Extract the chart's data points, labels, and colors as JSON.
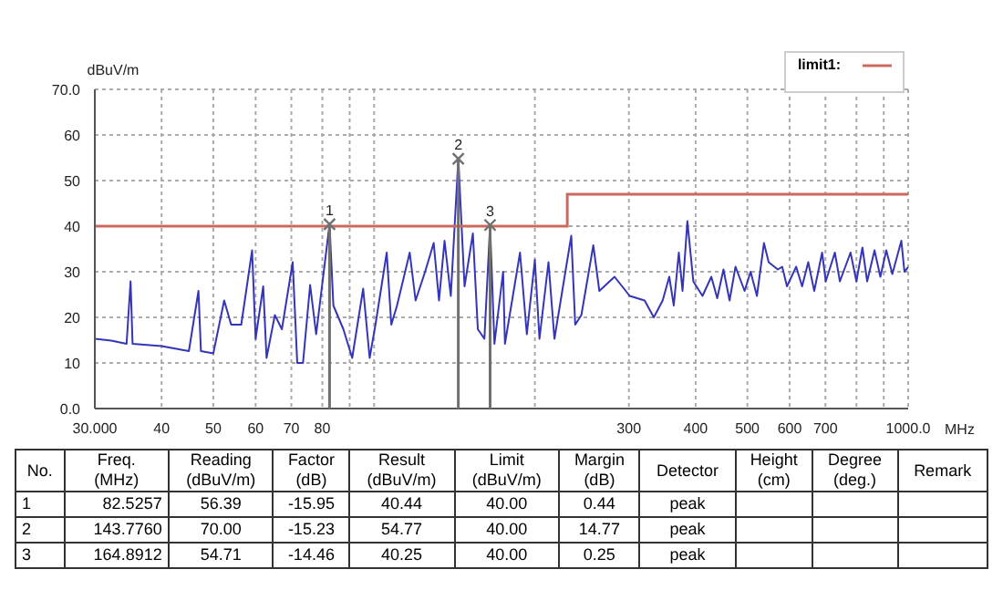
{
  "chart_data": [
    {
      "type": "line",
      "xlabel": "MHz",
      "ylabel": "dBuV/m",
      "log": "x",
      "grid": true,
      "legend": "top right",
      "xlim": [
        30,
        1000
      ],
      "xticks": [
        {
          "value": 30,
          "label": "30.000"
        },
        40,
        50,
        60,
        70,
        80,
        {
          "value": 90,
          "label": null
        },
        {
          "value": 100,
          "label": null
        },
        {
          "value": 200,
          "label": null
        },
        300,
        400,
        500,
        600,
        700,
        {
          "value": 800,
          "label": null
        },
        {
          "value": 900,
          "label": null
        },
        {
          "value": 1000,
          "label": "1000.0"
        }
      ],
      "ylim": [
        0,
        70
      ],
      "yticks": [
        {
          "value": 0,
          "label": "0.0"
        },
        10,
        20,
        30,
        40,
        50,
        60,
        {
          "value": 70,
          "label": "70.0"
        }
      ],
      "series": [
        {
          "color": "#3535b8",
          "x": [
            30,
            32.2,
            34.4,
            35,
            35.3,
            40,
            45,
            46.9,
            47.4,
            50,
            52.4,
            54,
            56.4,
            59.1,
            60,
            62,
            62.9,
            65.2,
            67.2,
            70.4,
            71.8,
            73.6,
            75.9,
            77.9,
            82.5257,
            83.9,
            87.6,
            91,
            95.4,
            98.1,
            100.6,
            105.6,
            107.7,
            110.4,
            116.6,
            119.6,
            124.6,
            129.3,
            132.3,
            135.5,
            139.2,
            143.776,
            147.7,
            153.1,
            156.4,
            160.9,
            164.8912,
            168,
            174.4,
            175.8,
            187.6,
            193.2,
            200,
            204,
            212.1,
            217.6,
            234,
            238,
            244.4,
            257.3,
            264.1,
            282,
            301,
            321,
            334,
            347,
            357,
            364,
            372,
            378,
            386,
            396,
            412,
            428,
            439,
            451,
            463,
            475,
            494,
            507,
            521,
            537,
            548,
            570,
            581,
            593,
            617,
            633,
            650,
            667,
            690,
            701,
            729,
            745,
            780,
            800,
            821,
            838,
            865,
            887,
            910,
            934,
            971,
            984,
            1000
          ],
          "values": [
            15.3,
            14.9,
            14.2,
            27.9,
            14.2,
            13.7,
            12.6,
            25.8,
            12.6,
            12.1,
            23.7,
            18.4,
            18.4,
            34.7,
            15.3,
            26.8,
            11.1,
            20.5,
            17.4,
            32.1,
            10,
            10,
            27.1,
            16.3,
            40.44,
            22.6,
            17.4,
            11.1,
            26.3,
            11.1,
            18.4,
            34.2,
            18.4,
            22.6,
            34.2,
            23.7,
            30,
            36.3,
            23.7,
            36.8,
            24.7,
            54.77,
            26.8,
            38.4,
            17.4,
            15.3,
            40.25,
            14.2,
            30,
            14.2,
            34.2,
            16.3,
            32.6,
            15.3,
            32.1,
            15.3,
            37.9,
            18.4,
            20.5,
            35.8,
            25.8,
            28.9,
            24.7,
            23.7,
            20,
            23.7,
            28.9,
            22.6,
            34.2,
            25.8,
            41.1,
            27.9,
            24.7,
            28.9,
            24.2,
            30.5,
            23.7,
            31.1,
            25.8,
            30,
            24.7,
            36.3,
            32.1,
            30.5,
            31.1,
            26.8,
            31.1,
            26.8,
            32.1,
            25.8,
            34.2,
            27.9,
            34.2,
            27.9,
            34.2,
            27.9,
            35.3,
            27.9,
            34.7,
            28.9,
            34.7,
            29.5,
            36.8,
            30,
            31
          ]
        },
        {
          "name": "limit1:",
          "type": "step",
          "color": "#cc6a5e",
          "x": [
            30,
            230,
            1000
          ],
          "values": [
            40,
            47,
            47
          ]
        },
        {
          "type": "lollipop",
          "marker": "cross",
          "color": "#707070",
          "x": [
            82.5257,
            143.776,
            164.8912
          ],
          "values": [
            40.44,
            54.77,
            40.25
          ]
        }
      ],
      "annotations": [
        {
          "text": "1",
          "x": 82.5257,
          "y": 40.44
        },
        {
          "text": "2",
          "x": 143.776,
          "y": 54.77
        },
        {
          "text": "3",
          "x": 164.8912,
          "y": 40.25
        }
      ]
    },
    {
      "type": "other",
      "categories": [
        "No.",
        "Freq.\n(MHz)",
        "Reading\n(dBuV/m)",
        "Factor\n(dB)",
        "Result\n(dBuV/m)",
        "Limit\n(dBuV/m)",
        "Margin\n(dB)",
        "Detector",
        "Height\n(cm)",
        "Degree\n(deg.)",
        "Remark"
      ],
      "cell_labels": [
        [
          "1",
          "82.5257",
          "56.39",
          "-15.95",
          "40.44",
          "40.00",
          "0.44",
          "peak",
          null,
          null,
          null
        ],
        [
          "2",
          "143.7760",
          "70.00",
          "-15.23",
          "54.77",
          "40.00",
          "14.77",
          "peak",
          null,
          null,
          null
        ],
        [
          "3",
          "164.8912",
          "54.71",
          "-14.46",
          "40.25",
          "40.00",
          "0.25",
          "peak",
          null,
          null,
          null
        ]
      ]
    }
  ]
}
